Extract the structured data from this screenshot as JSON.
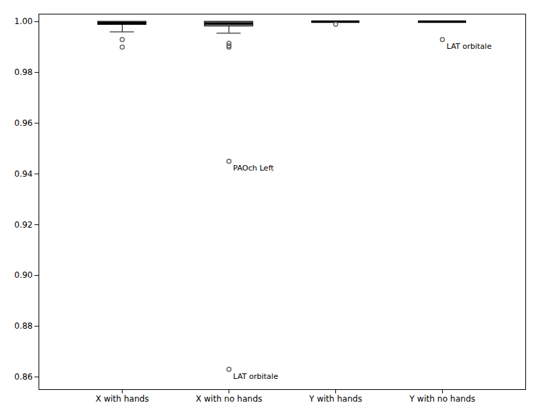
{
  "chart_data": {
    "type": "box",
    "categories": [
      "X with hands",
      "X with no hands",
      "Y with hands",
      "Y with no hands"
    ],
    "boxes": [
      {
        "q1": 0.9988,
        "median": 0.9995,
        "q3": 1.0,
        "whisker_low": 0.996,
        "whisker_high": 1.0,
        "outliers": [
          0.993,
          0.99
        ]
      },
      {
        "q1": 0.9982,
        "median": 0.9993,
        "q3": 1.0,
        "whisker_low": 0.9955,
        "whisker_high": 1.0,
        "outliers": [
          0.9915,
          0.9905,
          0.99,
          0.945,
          0.863
        ]
      },
      {
        "q1": 1.0,
        "median": 1.0,
        "q3": 1.0,
        "whisker_low": 1.0,
        "whisker_high": 1.0,
        "outliers": [
          0.999
        ]
      },
      {
        "q1": 1.0,
        "median": 1.0,
        "q3": 1.0,
        "whisker_low": 1.0,
        "whisker_high": 1.0,
        "outliers": [
          0.993
        ]
      }
    ],
    "colors": [
      "#b0b0b0",
      "#b0b0b0",
      "#ffffff",
      "#ffffff"
    ],
    "annotations": [
      {
        "category": "X with no hands",
        "value": 0.945,
        "text": "PAOch Left"
      },
      {
        "category": "X with no hands",
        "value": 0.863,
        "text": "LAT orbitale"
      },
      {
        "category": "Y with no hands",
        "value": 0.993,
        "text": "LAT orbitale"
      }
    ],
    "ylim": [
      0.855,
      1.003
    ],
    "yticks": [
      0.86,
      0.88,
      {
        "value": 0.9,
        "label": "0.90"
      },
      0.92,
      0.94,
      0.96,
      0.98,
      {
        "value": 1,
        "label": "1.00"
      }
    ],
    "grid": false
  }
}
